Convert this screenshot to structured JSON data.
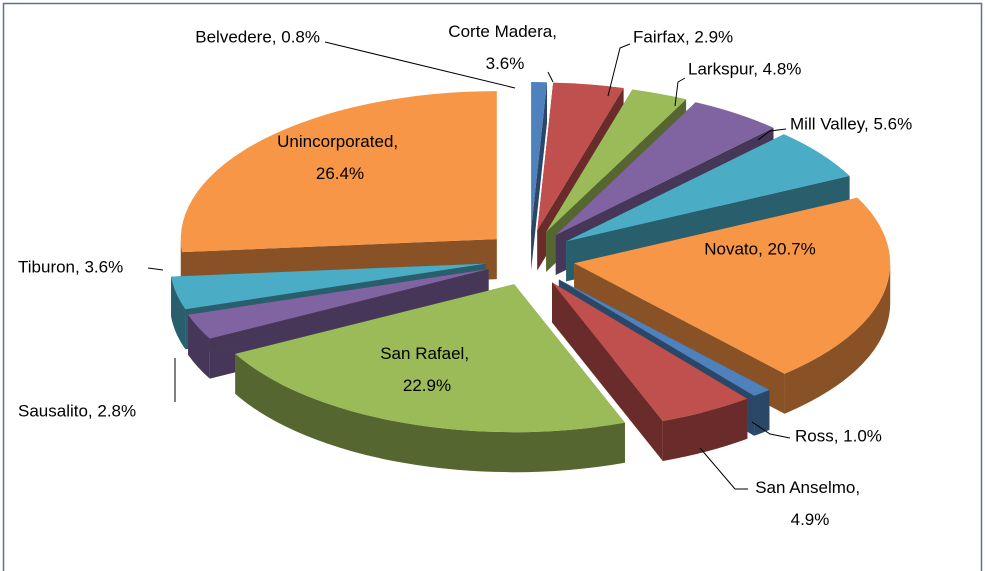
{
  "chart_data": {
    "type": "pie3d",
    "categories": [
      "Belvedere",
      "Corte Madera",
      "Fairfax",
      "Larkspur",
      "Mill Valley",
      "Novato",
      "Ross",
      "San Anselmo",
      "San Rafael",
      "Sausalito",
      "Tiburon",
      "Unincorporated"
    ],
    "values": [
      0.8,
      3.6,
      2.9,
      4.8,
      5.6,
      20.7,
      1.0,
      4.9,
      22.9,
      2.8,
      3.6,
      26.4
    ],
    "value_labels": [
      "Belvedere, 0.8%",
      "Corte Madera, 3.6%",
      "Fairfax, 2.9%",
      "Larkspur, 4.8%",
      "Mill Valley, 5.6%",
      "Novato, 20.7%",
      "Ross, 1.0%",
      "San Anselmo, 4.9%",
      "San Rafael, 22.9%",
      "Sausalito, 2.8%",
      "Tiburon, 3.6%",
      "Unincorporated, 26.4%"
    ],
    "colors": [
      "#4f81bd",
      "#c0504d",
      "#9bbb59",
      "#8064a2",
      "#4bacc6",
      "#f79646",
      "#4f81bd",
      "#c0504d",
      "#9bbb59",
      "#8064a2",
      "#4bacc6",
      "#f79646"
    ]
  }
}
